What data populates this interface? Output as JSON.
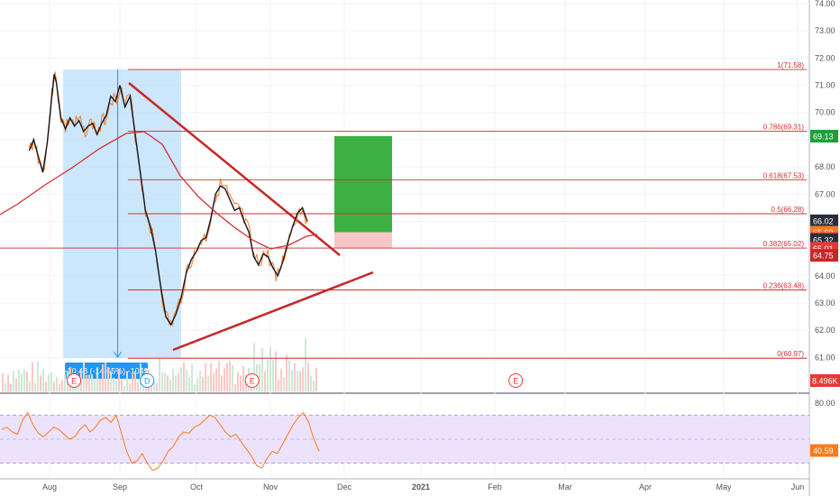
{
  "chart_data": {
    "type": "line",
    "title": "",
    "price_axis": {
      "ticks": [
        "74.00",
        "73.00",
        "72.00",
        "71.00",
        "70.00",
        "69.00",
        "68.00",
        "67.00",
        "66.00",
        "65.00",
        "64.00",
        "63.00",
        "62.00",
        "61.00"
      ],
      "values": [
        74,
        73,
        72,
        71,
        70,
        69,
        68,
        67,
        66,
        65,
        64,
        63,
        62,
        61
      ],
      "ylim": [
        60.5,
        74.1
      ]
    },
    "time_axis": {
      "labels": [
        "Aug",
        "Sep",
        "Oct",
        "Nov",
        "Dec",
        "2021",
        "Feb",
        "Mar",
        "Apr",
        "May",
        "Jun"
      ]
    },
    "price_badges": [
      {
        "text": "69.13",
        "value": 69.13,
        "color": "#1e9e3a"
      },
      {
        "text": "66.02",
        "value": 66.02,
        "color": "#2a2e39"
      },
      {
        "text": "65.60",
        "value": 65.6,
        "color": "#f57c1f"
      },
      {
        "text": "65.37",
        "value": 65.37,
        "color": "#e53935"
      },
      {
        "text": "65.32",
        "value": 65.32,
        "color": "#2a2e39"
      },
      {
        "text": "65.01",
        "value": 65.01,
        "color": "#e53935"
      },
      {
        "text": "64.75",
        "value": 64.75,
        "color": "#c62828"
      }
    ],
    "volume_badge": {
      "text": "8.496K",
      "color": "#e53935"
    },
    "fib_levels": [
      {
        "label": "1(71.58)",
        "value": 71.58
      },
      {
        "label": "0.786(69.31)",
        "value": 69.31
      },
      {
        "label": "0.618(67.53)",
        "value": 67.53
      },
      {
        "label": "0.5(66.28)",
        "value": 66.28
      },
      {
        "label": "0.382(65.02)",
        "value": 65.02
      },
      {
        "label": "0.236(63.48)",
        "value": 63.48
      },
      {
        "label": "0(60.97)",
        "value": 60.97
      }
    ],
    "measure_label": "-10.48 (-14.65%) -1049",
    "event_markers": [
      {
        "letter": "E",
        "month_pos": 0.45
      },
      {
        "letter": "D",
        "month_pos": 1.45
      },
      {
        "letter": "E",
        "month_pos": 2.85
      },
      {
        "letter": "E",
        "month_pos": 6.4
      }
    ],
    "price_series": [
      [
        "Jul 23",
        68.6
      ],
      [
        "Jul 25",
        69.0
      ],
      [
        "Jul 27",
        68.4
      ],
      [
        "Jul 29",
        67.8
      ],
      [
        "Jul 31",
        68.9
      ],
      [
        "Aug 2",
        70.6
      ],
      [
        "Aug 3",
        71.4
      ],
      [
        "Aug 4",
        71.1
      ],
      [
        "Aug 6",
        69.8
      ],
      [
        "Aug 8",
        69.4
      ],
      [
        "Aug 10",
        69.8
      ],
      [
        "Aug 12",
        69.5
      ],
      [
        "Aug 14",
        69.7
      ],
      [
        "Aug 16",
        69.3
      ],
      [
        "Aug 18",
        69.5
      ],
      [
        "Aug 20",
        69.6
      ],
      [
        "Aug 22",
        69.2
      ],
      [
        "Aug 24",
        69.6
      ],
      [
        "Aug 26",
        69.9
      ],
      [
        "Aug 28",
        70.6
      ],
      [
        "Aug 30",
        70.4
      ],
      [
        "Sep 1",
        71.0
      ],
      [
        "Sep 3",
        70.2
      ],
      [
        "Sep 5",
        70.6
      ],
      [
        "Sep 7",
        69.2
      ],
      [
        "Sep 9",
        67.8
      ],
      [
        "Sep 11",
        66.4
      ],
      [
        "Sep 13",
        65.8
      ],
      [
        "Sep 15",
        64.9
      ],
      [
        "Sep 17",
        63.6
      ],
      [
        "Sep 19",
        62.5
      ],
      [
        "Sep 21",
        62.2
      ],
      [
        "Sep 23",
        62.6
      ],
      [
        "Sep 25",
        63.2
      ],
      [
        "Sep 27",
        64.1
      ],
      [
        "Sep 29",
        64.6
      ],
      [
        "Oct 1",
        64.9
      ],
      [
        "Oct 3",
        65.3
      ],
      [
        "Oct 5",
        65.4
      ],
      [
        "Oct 7",
        66.1
      ],
      [
        "Oct 9",
        67.0
      ],
      [
        "Oct 11",
        67.3
      ],
      [
        "Oct 13",
        67.2
      ],
      [
        "Oct 15",
        66.8
      ],
      [
        "Oct 17",
        66.4
      ],
      [
        "Oct 19",
        66.5
      ],
      [
        "Oct 21",
        66.0
      ],
      [
        "Oct 23",
        65.6
      ],
      [
        "Oct 25",
        64.7
      ],
      [
        "Oct 27",
        64.4
      ],
      [
        "Oct 29",
        64.8
      ],
      [
        "Oct 31",
        64.7
      ],
      [
        "Nov 2",
        64.3
      ],
      [
        "Nov 4",
        64.0
      ],
      [
        "Nov 6",
        64.5
      ],
      [
        "Nov 8",
        65.2
      ],
      [
        "Nov 10",
        65.8
      ],
      [
        "Nov 12",
        66.3
      ],
      [
        "Nov 14",
        66.5
      ],
      [
        "Nov 16",
        66.0
      ]
    ],
    "rsi_axis": {
      "ticks": [
        "80.00"
      ],
      "value_badge": "40.59",
      "value": 40.59
    },
    "rsi_series": [
      58,
      60,
      56,
      54,
      66,
      72,
      62,
      55,
      52,
      56,
      60,
      58,
      54,
      50,
      52,
      58,
      62,
      56,
      60,
      66,
      68,
      64,
      70,
      55,
      40,
      30,
      32,
      38,
      30,
      24,
      26,
      32,
      40,
      44,
      52,
      56,
      55,
      60,
      62,
      66,
      70,
      68,
      62,
      56,
      52,
      54,
      48,
      42,
      36,
      28,
      26,
      34,
      40,
      38,
      46,
      54,
      62,
      68,
      72,
      64,
      50,
      40
    ]
  }
}
